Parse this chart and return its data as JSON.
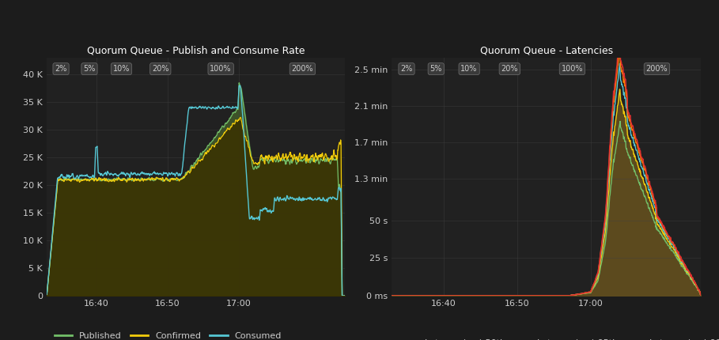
{
  "bg_color": "#1c1c1c",
  "plot_bg_color": "#212121",
  "grid_color": "#404040",
  "text_color": "#cccccc",
  "title_color": "#ffffff",
  "left_title": "Quorum Queue - Publish and Consume Rate",
  "right_title": "Quorum Queue - Latencies",
  "phase_labels": [
    "2%",
    "5%",
    "10%",
    "20%",
    "100%",
    "200%"
  ],
  "left_ylabel_ticks": [
    0,
    5000,
    10000,
    15000,
    20000,
    25000,
    30000,
    35000,
    40000
  ],
  "left_ylabel_labels": [
    "0",
    "5 K",
    "10 K",
    "15 K",
    "20 K",
    "25 K",
    "30 K",
    "35 K",
    "40 K"
  ],
  "left_ylim": [
    0,
    43000
  ],
  "right_ylabel_ticks": [
    0,
    25000,
    50000,
    78000,
    102000,
    126000,
    150000
  ],
  "right_ylabel_labels": [
    "0 ms",
    "25 s",
    "50 s",
    "1.3 min",
    "1.7 min",
    "2.1 min",
    "2.5 min"
  ],
  "right_ylim": [
    0,
    158000
  ],
  "xtick_labels": [
    "16:40",
    "16:50",
    "17:00"
  ],
  "published_color": "#73bf69",
  "confirmed_color": "#f2cc0c",
  "consumed_color": "#56c7d4",
  "lat50_color": "#73bf69",
  "lat75_color": "#f2cc0c",
  "lat95_color": "#56c7d4",
  "lat99_color": "#ff7f00",
  "lat999_color": "#e03030",
  "fill_left_color": "#3d5228",
  "fill_right_color": "#5c4a1e",
  "phase_box_facecolor": "#3a3a3a",
  "phase_box_edgecolor": "#707070",
  "phase_text_color": "#cccccc"
}
